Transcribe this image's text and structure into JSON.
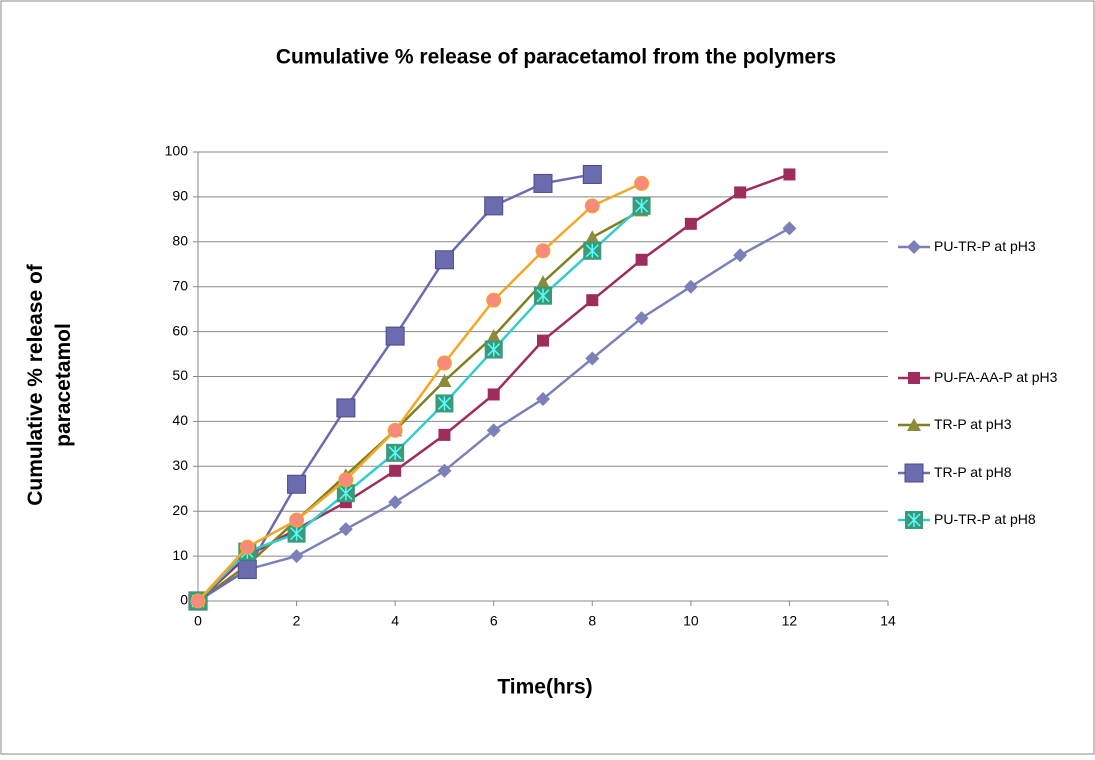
{
  "chart_data": {
    "type": "line",
    "title": "Cumulative % release of paracetamol from the polymers",
    "x_label": "Time(hrs)",
    "y_label": "Cumulative % release of paracetamol",
    "xlim": [
      0,
      14
    ],
    "xticks": [
      0,
      2,
      4,
      6,
      8,
      10,
      12,
      14
    ],
    "ylim": [
      0,
      100
    ],
    "yticks": [
      0,
      10,
      20,
      30,
      40,
      50,
      60,
      70,
      80,
      90,
      100
    ],
    "grid": true,
    "legend": "right",
    "series": [
      {
        "name": "PU-TR-P at pH3",
        "color": "#7b80b8",
        "marker_color": "#7b80b8",
        "marker": "diamond",
        "x": [
          0,
          1,
          2,
          3,
          4,
          5,
          6,
          7,
          8,
          9,
          10,
          11,
          12
        ],
        "values": [
          0,
          7,
          10,
          16,
          22,
          29,
          38,
          45,
          54,
          63,
          70,
          77,
          83
        ]
      },
      {
        "name": "PU-FA-AA-P at pH3",
        "color": "#9e2c5c",
        "marker_color": "#9e2c5c",
        "marker": "square",
        "x": [
          0,
          1,
          2,
          3,
          4,
          5,
          6,
          7,
          8,
          9,
          10,
          11,
          12
        ],
        "values": [
          0,
          10,
          16,
          22,
          29,
          37,
          46,
          58,
          67,
          76,
          84,
          91,
          95
        ]
      },
      {
        "name": "TR-P at pH3",
        "color": "#7f7f20",
        "marker_color": "#8b8b3a",
        "marker": "triangle",
        "x": [
          0,
          1,
          2,
          3,
          4,
          5,
          6,
          7,
          8,
          9
        ],
        "values": [
          0,
          8,
          18,
          28,
          38,
          49,
          59,
          71,
          81,
          87
        ]
      },
      {
        "name": "TR-P at pH8",
        "color": "#6b6baf",
        "marker_color": "#6b6baf",
        "marker": "bigsquare",
        "x": [
          0,
          1,
          2,
          3,
          4,
          5,
          6,
          7,
          8
        ],
        "values": [
          0,
          7,
          26,
          43,
          59,
          76,
          88,
          93,
          95
        ]
      },
      {
        "name": "PU-TR-P at pH8",
        "color": "#33cccc",
        "marker_color": "#3a9a7a",
        "marker": "starsquare",
        "x": [
          0,
          1,
          2,
          3,
          4,
          5,
          6,
          7,
          8,
          9
        ],
        "values": [
          0,
          11,
          15,
          24,
          33,
          44,
          56,
          68,
          78,
          88
        ]
      },
      {
        "color": "#f5a623",
        "marker_color": "#f78a7c",
        "marker": "circle",
        "x": [
          0,
          1,
          2,
          3,
          4,
          5,
          6,
          7,
          8,
          9
        ],
        "values": [
          0,
          12,
          18,
          27,
          38,
          53,
          67,
          78,
          88,
          93
        ]
      }
    ]
  }
}
